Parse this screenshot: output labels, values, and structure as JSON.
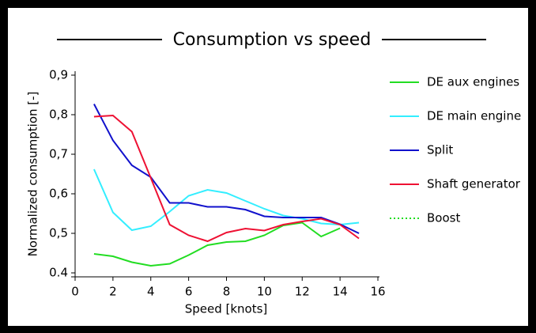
{
  "chart_data": {
    "type": "line",
    "title": "Consumption vs speed",
    "xlabel": "Speed [knots]",
    "ylabel": "Normalized consumption [-]",
    "x": [
      1,
      2,
      3,
      4,
      5,
      6,
      7,
      8,
      9,
      10,
      11,
      12,
      13,
      14,
      15
    ],
    "series": [
      {
        "name": "DE aux engines",
        "color": "#22dd22",
        "dash": "solid",
        "values": [
          0.448,
          0.442,
          0.427,
          0.418,
          0.423,
          0.445,
          0.47,
          0.478,
          0.48,
          0.495,
          0.52,
          0.527,
          0.492,
          0.513,
          null
        ]
      },
      {
        "name": "DE main engine",
        "color": "#33eeff",
        "dash": "solid",
        "values": [
          0.662,
          0.553,
          0.508,
          0.518,
          0.555,
          0.595,
          0.61,
          0.602,
          0.582,
          0.562,
          0.545,
          0.537,
          0.525,
          0.522,
          0.527
        ]
      },
      {
        "name": "Split",
        "color": "#1111cc",
        "dash": "solid",
        "values": [
          0.827,
          0.735,
          0.672,
          0.642,
          0.577,
          0.577,
          0.567,
          0.567,
          0.56,
          0.543,
          0.54,
          0.54,
          0.54,
          0.523,
          0.5
        ]
      },
      {
        "name": "Shaft generator",
        "color": "#ee1133",
        "dash": "solid",
        "values": [
          0.795,
          0.798,
          0.757,
          0.64,
          0.522,
          0.495,
          0.48,
          0.502,
          0.512,
          0.507,
          0.522,
          0.53,
          0.537,
          0.522,
          0.487
        ]
      },
      {
        "name": "Boost",
        "color": "#22dd22",
        "dash": "dotted",
        "values": [
          null,
          null,
          null,
          null,
          null,
          null,
          null,
          null,
          null,
          null,
          null,
          null,
          null,
          null,
          null
        ]
      }
    ],
    "xlim": [
      0,
      16
    ],
    "xticks": [
      0,
      2,
      4,
      6,
      8,
      10,
      12,
      14,
      16
    ],
    "ylim": [
      0.4,
      0.9
    ],
    "yticks": [
      {
        "value": 0.4,
        "label": "0.4"
      },
      {
        "value": 0.5,
        "label": "0,5"
      },
      {
        "value": 0.6,
        "label": "0,6"
      },
      {
        "value": 0.7,
        "label": "0,7"
      },
      {
        "value": 0.8,
        "label": "0,8"
      },
      {
        "value": 0.9,
        "label": "0,9"
      }
    ],
    "legend": "right"
  }
}
